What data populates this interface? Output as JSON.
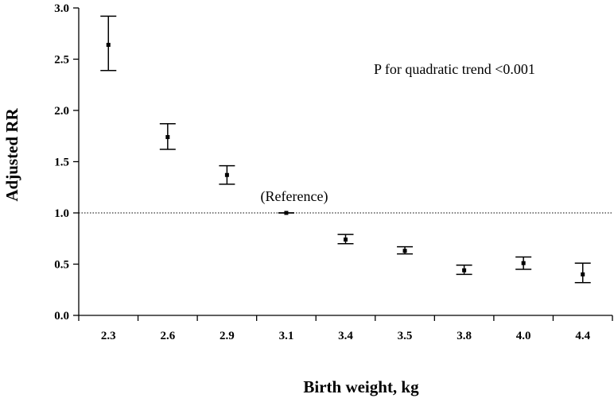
{
  "chart_data": {
    "type": "scatter",
    "title": "",
    "xlabel": "Birth weight, kg",
    "ylabel": "Adjusted RR",
    "ylim": [
      0,
      3.0
    ],
    "yticks": [
      "0.0",
      "0.5",
      "1.0",
      "1.5",
      "2.0",
      "2.5",
      "3.0"
    ],
    "categories": [
      "2.3",
      "2.6",
      "2.9",
      "3.1",
      "3.4",
      "3.5",
      "3.8",
      "4.0",
      "4.4"
    ],
    "points": [
      {
        "x": "2.3",
        "y": 2.64,
        "lower": 2.39,
        "upper": 2.92
      },
      {
        "x": "2.6",
        "y": 1.74,
        "lower": 1.62,
        "upper": 1.87
      },
      {
        "x": "2.9",
        "y": 1.37,
        "lower": 1.28,
        "upper": 1.46
      },
      {
        "x": "3.1",
        "y": 1.0,
        "lower": 1.0,
        "upper": 1.0
      },
      {
        "x": "3.4",
        "y": 0.74,
        "lower": 0.7,
        "upper": 0.79
      },
      {
        "x": "3.5",
        "y": 0.63,
        "lower": 0.6,
        "upper": 0.67
      },
      {
        "x": "3.8",
        "y": 0.44,
        "lower": 0.4,
        "upper": 0.49
      },
      {
        "x": "4.0",
        "y": 0.51,
        "lower": 0.45,
        "upper": 0.57
      },
      {
        "x": "4.4",
        "y": 0.4,
        "lower": 0.32,
        "upper": 0.51
      }
    ],
    "reference_line": {
      "y": 1.0,
      "label": "(Reference)"
    },
    "annotation": "P for quadratic trend <0.001",
    "grid": false
  }
}
